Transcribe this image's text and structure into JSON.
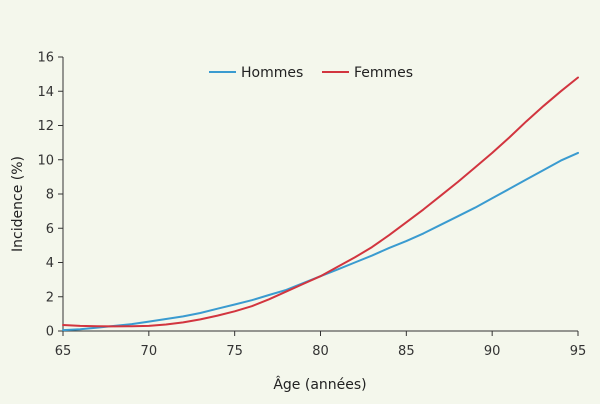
{
  "chart_data": {
    "type": "line",
    "title": "",
    "xlabel": "Âge (années)",
    "ylabel": "Incidence (%)",
    "xlim": [
      65,
      95
    ],
    "ylim": [
      0,
      16
    ],
    "x_ticks": [
      "65",
      "70",
      "75",
      "80",
      "85",
      "90",
      "95"
    ],
    "y_ticks": [
      "0",
      "2",
      "4",
      "6",
      "8",
      "10",
      "12",
      "14",
      "16"
    ],
    "grid": false,
    "legend_position": "top-center",
    "x": [
      65,
      66,
      67,
      68,
      69,
      70,
      71,
      72,
      73,
      74,
      75,
      76,
      77,
      78,
      79,
      80,
      81,
      82,
      83,
      84,
      85,
      86,
      87,
      88,
      89,
      90,
      91,
      92,
      93,
      94,
      95
    ],
    "series": [
      {
        "name": "Hommes",
        "color": "#3a9bd0",
        "values": [
          0.05,
          0.1,
          0.2,
          0.3,
          0.4,
          0.55,
          0.7,
          0.85,
          1.05,
          1.3,
          1.55,
          1.8,
          2.1,
          2.4,
          2.8,
          3.2,
          3.6,
          4.0,
          4.4,
          4.85,
          5.25,
          5.7,
          6.2,
          6.7,
          7.2,
          7.75,
          8.3,
          8.85,
          9.4,
          9.95,
          10.4
        ]
      },
      {
        "name": "Femmes",
        "color": "#d2353f",
        "values": [
          0.35,
          0.3,
          0.28,
          0.27,
          0.28,
          0.3,
          0.38,
          0.5,
          0.68,
          0.9,
          1.15,
          1.45,
          1.85,
          2.3,
          2.75,
          3.2,
          3.75,
          4.3,
          4.9,
          5.6,
          6.35,
          7.1,
          7.9,
          8.7,
          9.55,
          10.4,
          11.3,
          12.25,
          13.15,
          14.0,
          14.8
        ]
      }
    ]
  }
}
